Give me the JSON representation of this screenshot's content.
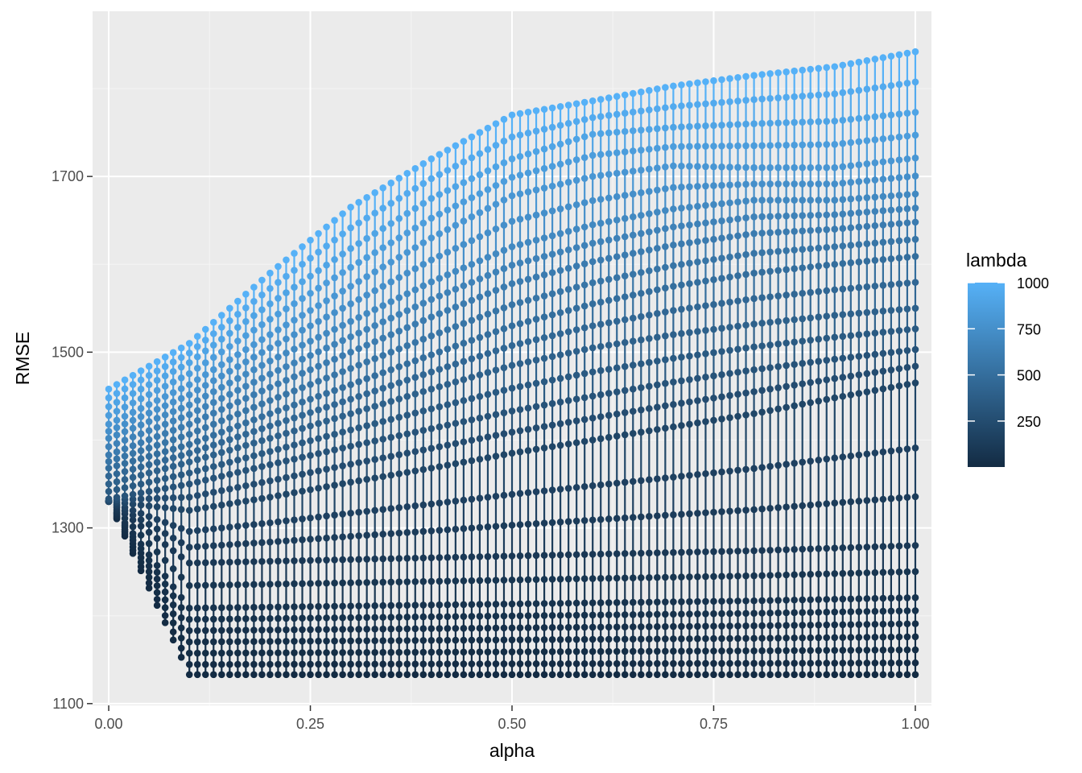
{
  "chart_data": {
    "type": "line",
    "title": "",
    "xlabel": "alpha",
    "ylabel": "RMSE",
    "xlim": [
      -0.02,
      1.02
    ],
    "ylim": [
      1098,
      1888
    ],
    "x_ticks": [
      0,
      0.25,
      0.5,
      0.75,
      1
    ],
    "x_tick_labels": [
      "0.00",
      "0.25",
      "0.50",
      "0.75",
      "1.00"
    ],
    "y_ticks": [
      1100,
      1300,
      1500,
      1700
    ],
    "y_tick_labels": [
      "1100",
      "1300",
      "1500",
      "1700"
    ],
    "grid": true,
    "markers": true,
    "alpha": {
      "start": 0,
      "end": 1,
      "step": 0.01
    },
    "lambda_levels": [
      1,
      10,
      20,
      30,
      40,
      50,
      60,
      80,
      100,
      130,
      160,
      200,
      250,
      300,
      350,
      400,
      450,
      500,
      550,
      600,
      650,
      700,
      750,
      800,
      850,
      900,
      950,
      1000
    ],
    "series_note_lambda_curves": [
      {
        "lambda": 1000,
        "alpha": [
          0,
          0.1,
          0.2,
          0.3,
          0.4,
          0.5,
          0.6,
          0.7,
          0.8,
          0.9,
          1.0
        ],
        "rmse": [
          1458,
          1510,
          1590,
          1665,
          1720,
          1770,
          1786,
          1803,
          1815,
          1825,
          1842
        ]
      },
      {
        "lambda": 900,
        "alpha": [
          0,
          0.1,
          0.2,
          0.3,
          0.4,
          0.5,
          0.6,
          0.7,
          0.8,
          0.9,
          1.0
        ],
        "rmse": [
          1438,
          1488,
          1555,
          1618,
          1675,
          1720,
          1748,
          1756,
          1760,
          1763,
          1773
        ]
      },
      {
        "lambda": 800,
        "alpha": [
          0,
          0.1,
          0.2,
          0.3,
          0.4,
          0.5,
          0.6,
          0.7,
          0.8,
          0.9,
          1.0
        ],
        "rmse": [
          1418,
          1463,
          1520,
          1575,
          1630,
          1678,
          1700,
          1712,
          1710,
          1710,
          1721
        ]
      },
      {
        "lambda": 700,
        "alpha": [
          0,
          0.1,
          0.2,
          0.3,
          0.4,
          0.5,
          0.6,
          0.7,
          0.8,
          0.9,
          1.0
        ],
        "rmse": [
          1402,
          1440,
          1490,
          1535,
          1580,
          1620,
          1645,
          1663,
          1673,
          1673,
          1680
        ]
      },
      {
        "lambda": 600,
        "alpha": [
          0,
          0.1,
          0.2,
          0.3,
          0.4,
          0.5,
          0.6,
          0.7,
          0.8,
          0.9,
          1.0
        ],
        "rmse": [
          1383,
          1418,
          1460,
          1500,
          1540,
          1578,
          1603,
          1622,
          1635,
          1640,
          1648
        ]
      },
      {
        "lambda": 500,
        "alpha": [
          0,
          0.1,
          0.2,
          0.3,
          0.4,
          0.5,
          0.6,
          0.7,
          0.8,
          0.9,
          1.0
        ],
        "rmse": [
          1368,
          1395,
          1430,
          1463,
          1497,
          1530,
          1555,
          1575,
          1590,
          1600,
          1609
        ]
      },
      {
        "lambda": 400,
        "alpha": [
          0,
          0.1,
          0.2,
          0.3,
          0.4,
          0.5,
          0.6,
          0.7,
          0.8,
          0.9,
          1.0
        ],
        "rmse": [
          1350,
          1375,
          1402,
          1430,
          1458,
          1485,
          1505,
          1520,
          1532,
          1542,
          1550
        ]
      },
      {
        "lambda": 300,
        "alpha": [
          0,
          0.1,
          0.2,
          0.3,
          0.4,
          0.5,
          0.6,
          0.7,
          0.8,
          0.9,
          1.0
        ],
        "rmse": [
          1333,
          1350,
          1372,
          1393,
          1413,
          1433,
          1450,
          1466,
          1480,
          1492,
          1503
        ]
      },
      {
        "lambda": 200,
        "alpha": [
          0,
          0.1,
          0.2,
          0.3,
          0.4,
          0.5,
          0.6,
          0.7,
          0.8,
          0.9,
          1.0
        ],
        "rmse": [
          1330,
          1320,
          1335,
          1352,
          1368,
          1385,
          1400,
          1415,
          1430,
          1448,
          1465
        ]
      },
      {
        "lambda": 100,
        "alpha": [
          0,
          0.1,
          0.2,
          0.3,
          0.4,
          0.5,
          0.6,
          0.7,
          0.8,
          0.9,
          1.0
        ],
        "rmse": [
          1330,
          1260,
          1262,
          1264,
          1266,
          1268,
          1270,
          1272,
          1274,
          1277,
          1280
        ]
      },
      {
        "lambda": 1,
        "alpha": [
          0,
          0.1,
          0.2,
          0.3,
          0.4,
          0.5,
          0.6,
          0.7,
          0.8,
          0.9,
          1.0
        ],
        "rmse": [
          1330,
          1133,
          1133,
          1133,
          1133,
          1133,
          1133,
          1133,
          1133,
          1133,
          1133
        ]
      }
    ],
    "legend": {
      "title": "lambda",
      "type": "colorbar",
      "placement": "right",
      "range": [
        1,
        1000
      ],
      "breaks": [
        250,
        500,
        750,
        1000
      ],
      "break_labels": [
        "250",
        "500",
        "750",
        "1000"
      ],
      "low_color": "#132B43",
      "high_color": "#56B1F7"
    }
  },
  "colors": {
    "panel": "#EBEBEB",
    "grid_major": "#FFFFFF",
    "grid_minor": "#F5F5F5",
    "low": "#132B43",
    "high": "#56B1F7"
  }
}
